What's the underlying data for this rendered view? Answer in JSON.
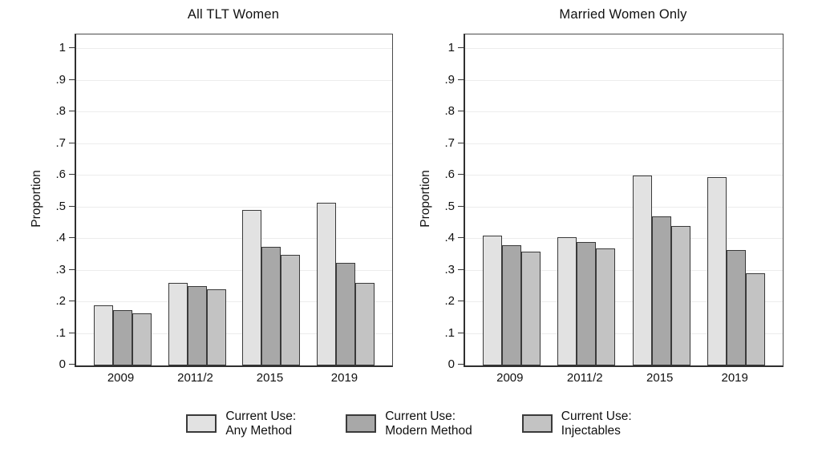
{
  "colors": {
    "background": "#ffffff",
    "bar_outline": "#3a3a3a",
    "axis_frame": "#2f2f2f",
    "gridline": "#ececec",
    "text": "#111111",
    "any_method_fill": "#e2e2e2",
    "modern_method_fill": "#a8a8a8",
    "injectables_fill": "#c3c3c3"
  },
  "legend": {
    "items": [
      {
        "name": "any-method",
        "label_line1": "Current Use:",
        "label_line2": "Any Method",
        "color": "#e2e2e2"
      },
      {
        "name": "modern-method",
        "label_line1": "Current Use:",
        "label_line2": "Modern Method",
        "color": "#a8a8a8"
      },
      {
        "name": "injectables",
        "label_line1": "Current Use:",
        "label_line2": "Injectables",
        "color": "#c3c3c3"
      }
    ]
  },
  "chart_data": [
    {
      "type": "bar",
      "title": "All TLT Women",
      "xlabel": "",
      "ylabel": "Proportion",
      "categories": [
        "2009",
        "2011/2",
        "2015",
        "2019"
      ],
      "series": [
        {
          "name": "Current Use: Any Method",
          "values": [
            0.19,
            0.26,
            0.49,
            0.515
          ]
        },
        {
          "name": "Current Use: Modern Method",
          "values": [
            0.175,
            0.25,
            0.375,
            0.325
          ]
        },
        {
          "name": "Current Use: Injectables",
          "values": [
            0.165,
            0.24,
            0.35,
            0.26
          ]
        }
      ],
      "ylim": [
        0,
        1.045
      ],
      "yticks": [
        "0",
        ".1",
        ".2",
        ".3",
        ".4",
        ".5",
        ".6",
        ".7",
        ".8",
        ".9",
        "1"
      ],
      "grid": true,
      "legend_position": "bottom"
    },
    {
      "type": "bar",
      "title": "Married Women Only",
      "xlabel": "",
      "ylabel": "Proportion",
      "categories": [
        "2009",
        "2011/2",
        "2015",
        "2019"
      ],
      "series": [
        {
          "name": "Current Use: Any Method",
          "values": [
            0.41,
            0.405,
            0.6,
            0.595
          ]
        },
        {
          "name": "Current Use: Modern Method",
          "values": [
            0.38,
            0.39,
            0.47,
            0.365
          ]
        },
        {
          "name": "Current Use: Injectables",
          "values": [
            0.36,
            0.37,
            0.44,
            0.29
          ]
        }
      ],
      "ylim": [
        0,
        1.045
      ],
      "yticks": [
        "0",
        ".1",
        ".2",
        ".3",
        ".4",
        ".5",
        ".6",
        ".7",
        ".8",
        ".9",
        "1"
      ],
      "grid": true,
      "legend_position": "bottom"
    }
  ]
}
